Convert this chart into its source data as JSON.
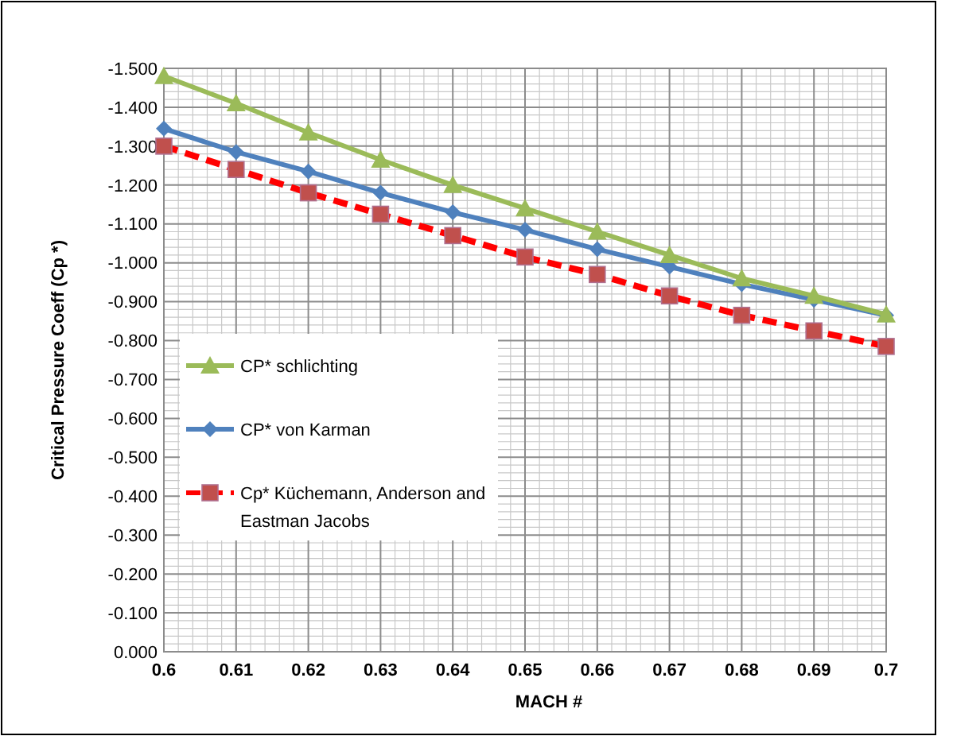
{
  "chart_data": {
    "type": "line",
    "xlabel": "MACH #",
    "ylabel": "Critical Pressure Coeff  (Cp *)",
    "x": [
      0.6,
      0.61,
      0.62,
      0.63,
      0.64,
      0.65,
      0.66,
      0.67,
      0.68,
      0.69,
      0.7
    ],
    "xlim": [
      0.6,
      0.7
    ],
    "xticks": [
      {
        "value": 0.6,
        "label": "0.6"
      },
      0.61,
      0.62,
      0.63,
      0.64,
      0.65,
      0.66,
      0.67,
      0.68,
      0.69,
      {
        "value": 0.7,
        "label": "0.7"
      }
    ],
    "ylim": [
      0,
      -1.5
    ],
    "yticks": [
      {
        "value": 0,
        "label": "0.000"
      },
      {
        "value": -0.1,
        "label": "-0.100"
      },
      {
        "value": -0.2,
        "label": "-0.200"
      },
      {
        "value": -0.3,
        "label": "-0.300"
      },
      {
        "value": -0.4,
        "label": "-0.400"
      },
      {
        "value": -0.5,
        "label": "-0.500"
      },
      {
        "value": -0.6,
        "label": "-0.600"
      },
      {
        "value": -0.7,
        "label": "-0.700"
      },
      {
        "value": -0.8,
        "label": "-0.800"
      },
      {
        "value": -0.9,
        "label": "-0.900"
      },
      {
        "value": -1.0,
        "label": "-1.000"
      },
      {
        "value": -1.1,
        "label": "-1.100"
      },
      {
        "value": -1.2,
        "label": "-1.200"
      },
      {
        "value": -1.3,
        "label": "-1.300"
      },
      {
        "value": -1.4,
        "label": "-1.400"
      },
      {
        "value": -1.5,
        "label": "-1.500"
      }
    ],
    "grid": true,
    "legend": "bottom left",
    "series": [
      {
        "name": "CP* schlichting",
        "color": "#9bbb59",
        "marker": "triangle",
        "line_style": "solid",
        "values": [
          -1.48,
          -1.41,
          -1.335,
          -1.265,
          -1.2,
          -1.14,
          -1.08,
          -1.02,
          -0.96,
          -0.915,
          -0.867
        ]
      },
      {
        "name": "CP* von Karman",
        "color": "#4f81bd",
        "marker": "diamond",
        "line_style": "solid",
        "values": [
          -1.345,
          -1.285,
          -1.235,
          -1.18,
          -1.13,
          -1.085,
          -1.035,
          -0.99,
          -0.945,
          -0.905,
          -0.865
        ]
      },
      {
        "name": "Cp* Küchemann, Anderson and Eastman Jacobs",
        "color": "#ff0000",
        "marker": "square",
        "line_style": "dashed",
        "values": [
          -1.3,
          -1.24,
          -1.18,
          -1.125,
          -1.07,
          -1.015,
          -0.97,
          -0.915,
          -0.865,
          -0.825,
          -0.785
        ]
      }
    ]
  }
}
